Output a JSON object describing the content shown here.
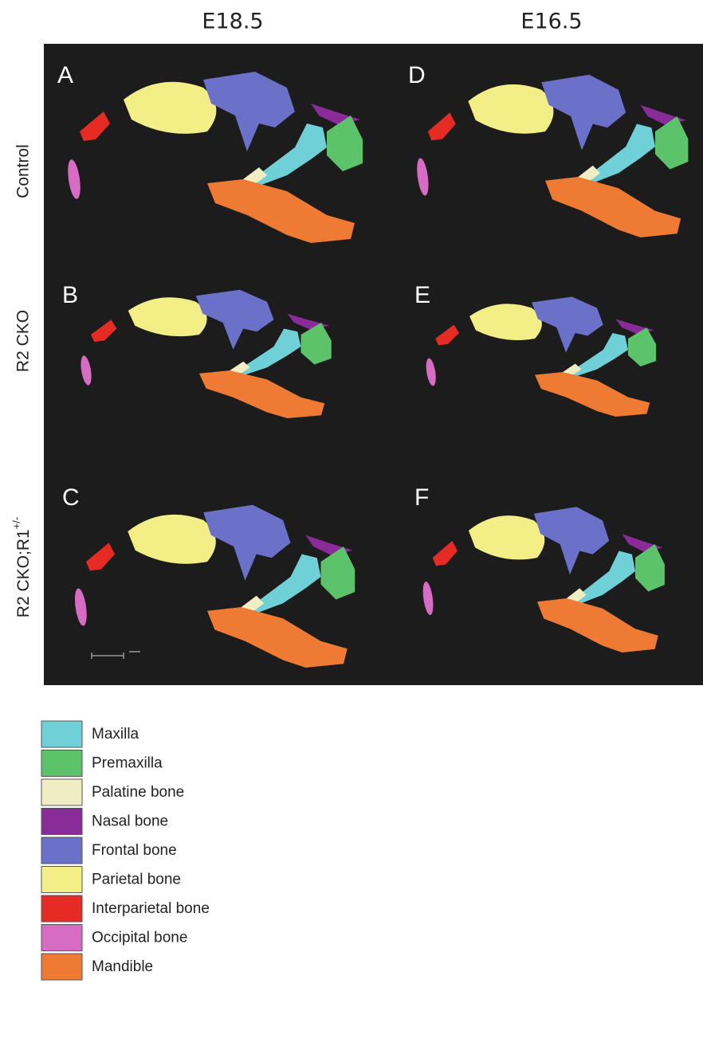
{
  "figure": {
    "columns": [
      "E18.5",
      "E16.5"
    ],
    "rows": [
      {
        "text": "Control"
      },
      {
        "text": "R2 CKO"
      },
      {
        "text": "R2 CKO;R1",
        "superscript": "+/-"
      }
    ],
    "panels": [
      "A",
      "D",
      "B",
      "E",
      "C",
      "F"
    ],
    "background": "#1c1c1c"
  },
  "legend": {
    "items": [
      {
        "label": "Maxilla",
        "color": "#6fd0d8"
      },
      {
        "label": "Premaxilla",
        "color": "#5cc36a"
      },
      {
        "label": "Palatine bone",
        "color": "#f0ecc4"
      },
      {
        "label": "Nasal bone",
        "color": "#8a2b9a"
      },
      {
        "label": "Frontal bone",
        "color": "#6b70c8"
      },
      {
        "label": "Parietal bone",
        "color": "#f4ee86"
      },
      {
        "label": "Interparietal bone",
        "color": "#e52b24"
      },
      {
        "label": "Occipital bone",
        "color": "#d66cc4"
      },
      {
        "label": "Mandible",
        "color": "#ef7a34"
      }
    ]
  }
}
